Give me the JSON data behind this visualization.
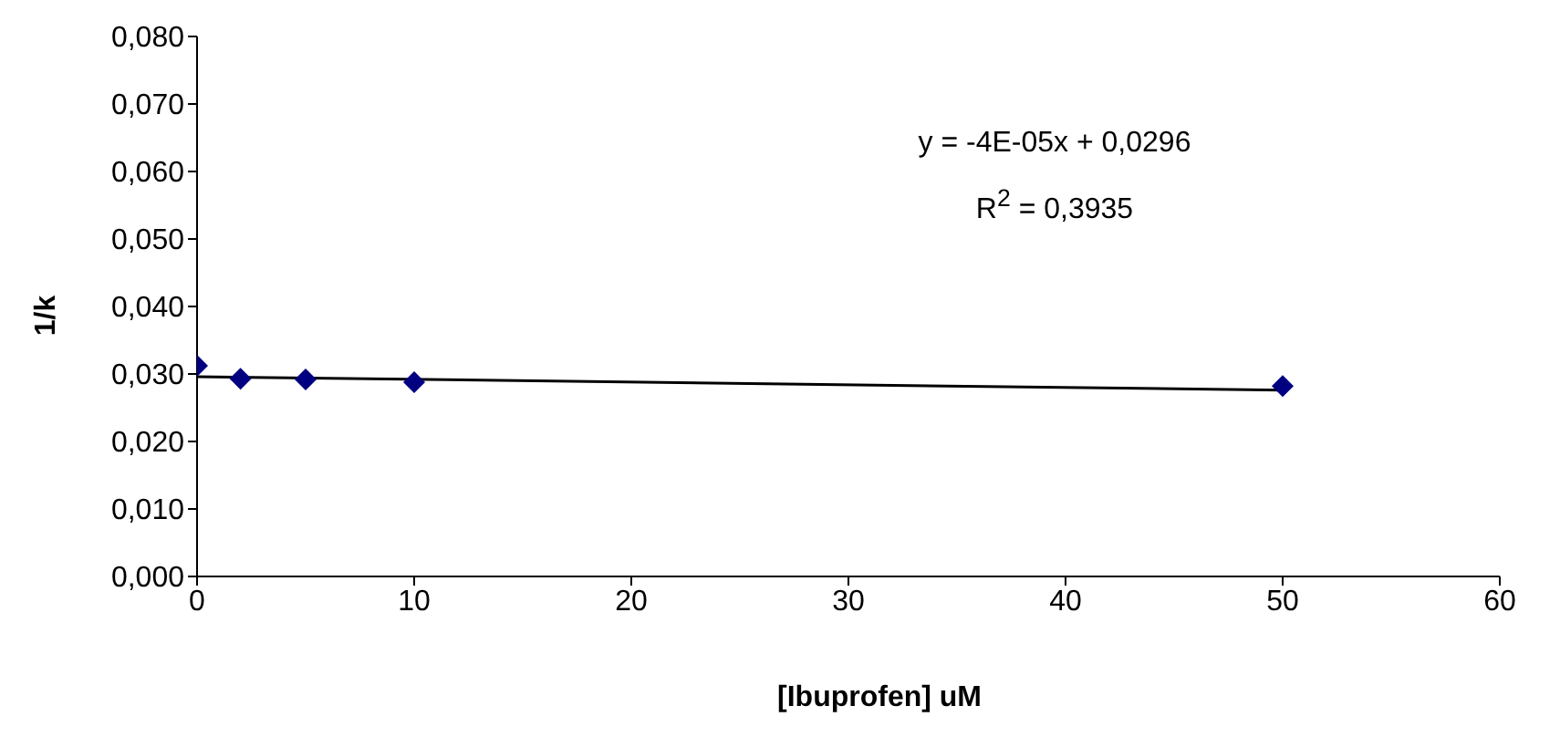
{
  "chart_data": {
    "type": "scatter",
    "xlabel": "[Ibuprofen] uM",
    "ylabel": "1/k",
    "x": [
      0,
      2,
      5,
      10,
      50
    ],
    "series": [
      {
        "color": "#000080",
        "values": [
          0.0312,
          0.0293,
          0.0292,
          0.0288,
          0.0282
        ],
        "marker": "diamond"
      },
      {
        "type": "line",
        "color": "#000000",
        "x": [
          0,
          50
        ],
        "values": [
          0.0296,
          0.0276
        ],
        "marker": "none"
      }
    ],
    "xlim": [
      0,
      60
    ],
    "xticks": [
      0,
      10,
      20,
      30,
      40,
      50,
      60
    ],
    "ylim": [
      0,
      0.08
    ],
    "yticks": [
      {
        "value": 0,
        "label": "0,000"
      },
      {
        "value": 0.01,
        "label": "0,010"
      },
      {
        "value": 0.02,
        "label": "0,020"
      },
      {
        "value": 0.03,
        "label": "0,030"
      },
      {
        "value": 0.04,
        "label": "0,040"
      },
      {
        "value": 0.05,
        "label": "0,050"
      },
      {
        "value": 0.06,
        "label": "0,060"
      },
      {
        "value": 0.07,
        "label": "0,070"
      },
      {
        "value": 0.08,
        "label": "0,080"
      }
    ],
    "annotations": [
      "y = -4E-05x + 0,0296",
      "R$^{2}$ = 0,3935"
    ],
    "grid": false
  }
}
